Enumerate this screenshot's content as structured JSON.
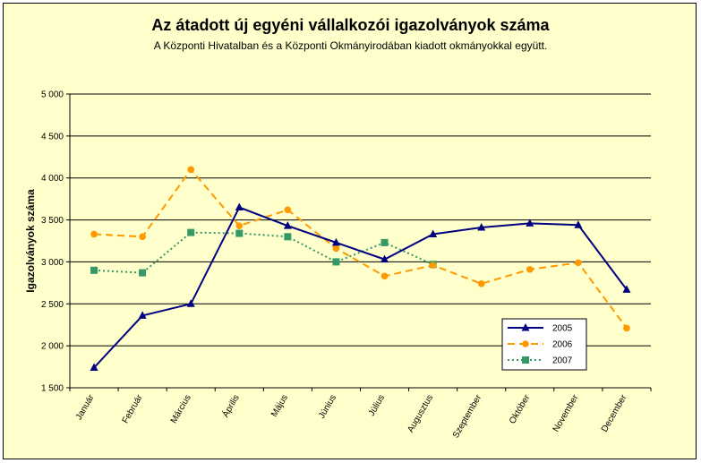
{
  "chart_data": {
    "type": "line",
    "title": "Az átadott új egyéni vállalkozói  igazolványok száma",
    "subtitle": "A Központi Hivatalban és a Központi Okmányirodában kiadott okmányokkal együtt.",
    "xlabel": "",
    "ylabel": "Igazolványok száma",
    "ylim": [
      1500,
      5000
    ],
    "yticks": [
      1500,
      2000,
      2500,
      3000,
      3500,
      4000,
      4500,
      5000
    ],
    "ytick_labels": [
      "1 500",
      "2 000",
      "2 500",
      "3 000",
      "3 500",
      "4 000",
      "4 500",
      "5 000"
    ],
    "categories": [
      "Január",
      "Február",
      "Március",
      "Április",
      "Május",
      "Június",
      "Július",
      "Augusztus",
      "Szeptember",
      "Október",
      "November",
      "December"
    ],
    "grid": true,
    "legend": "right",
    "series": [
      {
        "name": "2005",
        "color": "#000080",
        "marker": "triangle",
        "dash": "",
        "values": [
          1740,
          2360,
          2500,
          3650,
          3430,
          3230,
          3030,
          3330,
          3410,
          3460,
          3440,
          2670
        ]
      },
      {
        "name": "2006",
        "color": "#ff9900",
        "marker": "circle",
        "dash": "8,5",
        "values": [
          3330,
          3300,
          4100,
          3430,
          3620,
          3160,
          2830,
          2960,
          2740,
          2910,
          2990,
          2210
        ]
      },
      {
        "name": "2007",
        "color": "#339966",
        "marker": "square",
        "dash": "2,3",
        "values": [
          2900,
          2870,
          3350,
          3340,
          3300,
          3000,
          3230,
          2970,
          null,
          null,
          null,
          null
        ]
      }
    ]
  }
}
